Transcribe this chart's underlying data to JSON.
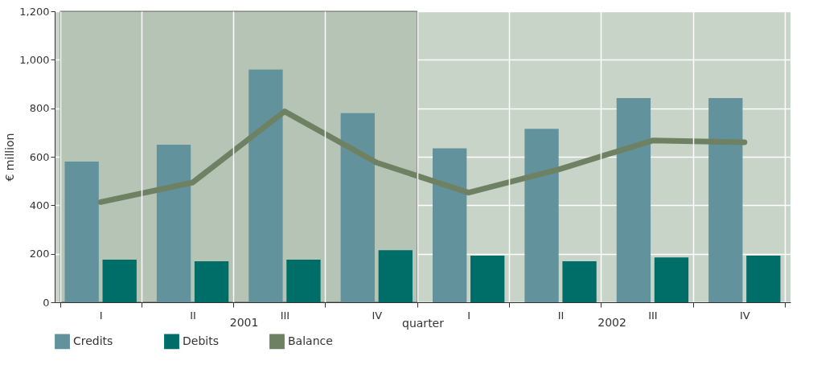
{
  "chart_data": {
    "type": "bar",
    "ylabel": "€ million",
    "xlabel": "quarter",
    "categories": [
      "I",
      "II",
      "III",
      "IV",
      "I",
      "II",
      "III",
      "IV"
    ],
    "ylim": [
      0,
      1200
    ],
    "yticks": [
      {
        "value": 0,
        "label": "0"
      },
      {
        "value": 200,
        "label": "200"
      },
      {
        "value": 400,
        "label": "400"
      },
      {
        "value": 600,
        "label": "600"
      },
      {
        "value": 800,
        "label": "800"
      },
      {
        "value": 1000,
        "label": "1,000"
      },
      {
        "value": 1200,
        "label": "1,200"
      }
    ],
    "grid": true,
    "legend": "bottom",
    "annotations": [
      "2001",
      "2002"
    ],
    "bands": [
      {
        "axis": "x",
        "from": "I",
        "to": "IV",
        "color": "#b5c4b4"
      }
    ],
    "series": [
      {
        "name": "Credits",
        "color": "#62939c",
        "values": [
          580,
          650,
          960,
          780,
          635,
          715,
          842,
          842
        ]
      },
      {
        "name": "Debits",
        "color": "#006e68",
        "values": [
          176,
          169,
          176,
          215,
          192,
          169,
          185,
          192
        ]
      },
      {
        "name": "Balance",
        "type": "line",
        "color": "#6e8263",
        "values": [
          413,
          494,
          787,
          576,
          452,
          550,
          667,
          660
        ]
      }
    ]
  }
}
